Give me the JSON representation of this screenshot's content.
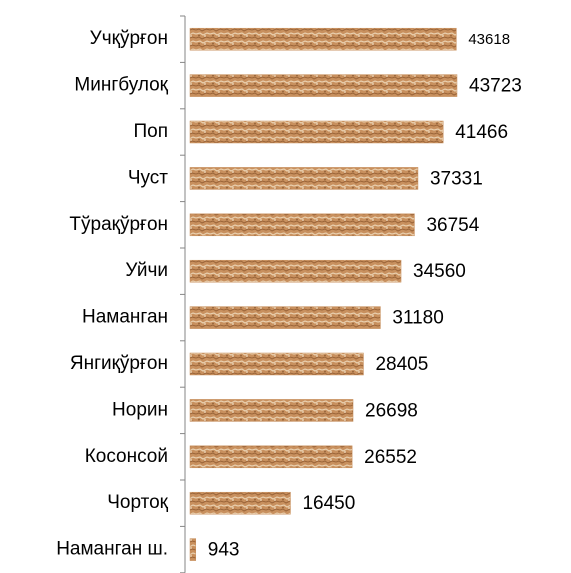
{
  "chart_data": {
    "type": "bar",
    "orientation": "horizontal",
    "categories": [
      "Учқўрғон",
      "Мингбулоқ",
      "Поп",
      "Чуст",
      "Тўрақўрғон",
      "Уйчи",
      "Наманган",
      "Янгиқўрғон",
      "Норин",
      "Косонсой",
      "Чортоқ",
      "Наманган ш."
    ],
    "values": [
      43618,
      43723,
      41466,
      37331,
      36754,
      34560,
      31180,
      28405,
      26698,
      26552,
      16450,
      943
    ],
    "color": "#c8905e"
  }
}
